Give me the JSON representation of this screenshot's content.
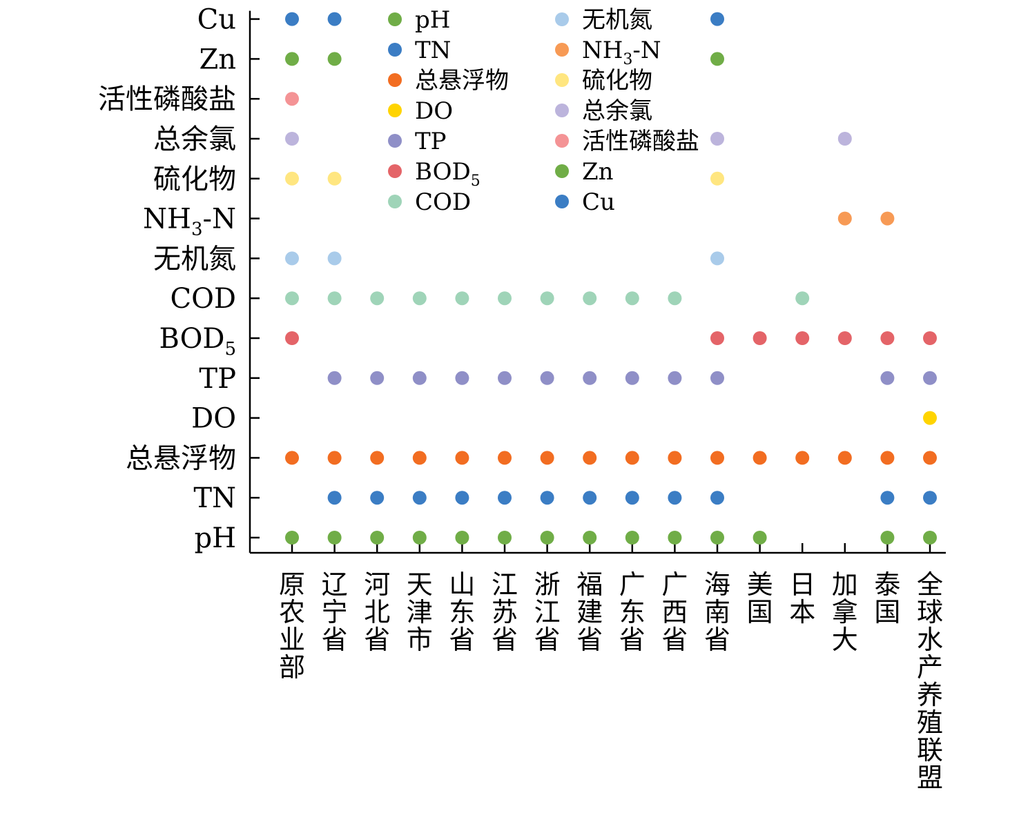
{
  "chart_data": {
    "type": "scatter",
    "title": "",
    "xlabel": "",
    "ylabel": "",
    "grid": false,
    "legend_placement": "top-center",
    "categories": [
      "原农业部",
      "辽宁省",
      "河北省",
      "天津市",
      "山东省",
      "江苏省",
      "浙江省",
      "福建省",
      "广东省",
      "广西省",
      "海南省",
      "美国",
      "日本",
      "加拿大",
      "泰国",
      "全球水产养殖联盟"
    ],
    "parameters": [
      {
        "key": "pH",
        "label": "pH",
        "sub": "",
        "color": "#70ad47"
      },
      {
        "key": "TN",
        "label": "TN",
        "sub": "",
        "color": "#3b7dc4"
      },
      {
        "key": "TSS",
        "label": "总悬浮物",
        "sub": "",
        "color": "#f26d21"
      },
      {
        "key": "DO",
        "label": "DO",
        "sub": "",
        "color": "#ffd400"
      },
      {
        "key": "TP",
        "label": "TP",
        "sub": "",
        "color": "#8f8fc7"
      },
      {
        "key": "BOD5",
        "label": "BOD",
        "sub": "5",
        "color": "#e46468"
      },
      {
        "key": "COD",
        "label": "COD",
        "sub": "",
        "color": "#9fd4b8"
      },
      {
        "key": "IN",
        "label": "无机氮",
        "sub": "",
        "color": "#a9cbea"
      },
      {
        "key": "NH3N",
        "label": "NH",
        "sub": "3",
        "suffix": "-N",
        "color": "#f79a55"
      },
      {
        "key": "S",
        "label": "硫化物",
        "sub": "",
        "color": "#ffe680"
      },
      {
        "key": "TRC",
        "label": "总余氯",
        "sub": "",
        "color": "#bcb4dc"
      },
      {
        "key": "RP",
        "label": "活性磷酸盐",
        "sub": "",
        "color": "#f49395"
      },
      {
        "key": "Zn",
        "label": "Zn",
        "sub": "",
        "color": "#70ad47"
      },
      {
        "key": "Cu",
        "label": "Cu",
        "sub": "",
        "color": "#3b7dc4"
      }
    ],
    "legend_order": [
      "pH",
      "TN",
      "TSS",
      "DO",
      "TP",
      "BOD5",
      "COD",
      "IN",
      "NH3N",
      "S",
      "TRC",
      "RP",
      "Zn",
      "Cu"
    ],
    "points": {
      "pH": [
        "原农业部",
        "辽宁省",
        "河北省",
        "天津市",
        "山东省",
        "江苏省",
        "浙江省",
        "福建省",
        "广东省",
        "广西省",
        "海南省",
        "美国",
        "泰国",
        "全球水产养殖联盟"
      ],
      "TN": [
        "辽宁省",
        "河北省",
        "天津市",
        "山东省",
        "江苏省",
        "浙江省",
        "福建省",
        "广东省",
        "广西省",
        "海南省",
        "泰国",
        "全球水产养殖联盟"
      ],
      "TSS": [
        "原农业部",
        "辽宁省",
        "河北省",
        "天津市",
        "山东省",
        "江苏省",
        "浙江省",
        "福建省",
        "广东省",
        "广西省",
        "海南省",
        "美国",
        "日本",
        "加拿大",
        "泰国",
        "全球水产养殖联盟"
      ],
      "DO": [
        "全球水产养殖联盟"
      ],
      "TP": [
        "辽宁省",
        "河北省",
        "天津市",
        "山东省",
        "江苏省",
        "浙江省",
        "福建省",
        "广东省",
        "广西省",
        "海南省",
        "泰国",
        "全球水产养殖联盟"
      ],
      "BOD5": [
        "原农业部",
        "海南省",
        "美国",
        "日本",
        "加拿大",
        "泰国",
        "全球水产养殖联盟"
      ],
      "COD": [
        "原农业部",
        "辽宁省",
        "河北省",
        "天津市",
        "山东省",
        "江苏省",
        "浙江省",
        "福建省",
        "广东省",
        "广西省",
        "日本"
      ],
      "IN": [
        "原农业部",
        "辽宁省",
        "海南省"
      ],
      "NH3N": [
        "加拿大",
        "泰国"
      ],
      "S": [
        "原农业部",
        "辽宁省",
        "海南省"
      ],
      "TRC": [
        "原农业部",
        "海南省",
        "加拿大"
      ],
      "RP": [
        "原农业部"
      ],
      "Zn": [
        "原农业部",
        "辽宁省",
        "海南省"
      ],
      "Cu": [
        "原农业部",
        "辽宁省",
        "海南省"
      ]
    }
  }
}
